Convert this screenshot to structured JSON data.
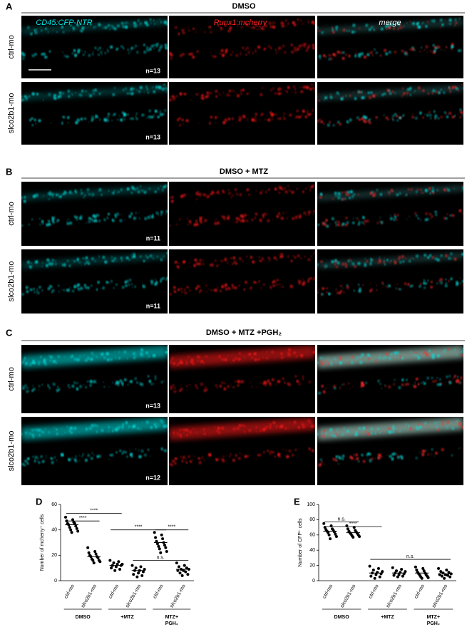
{
  "figure": {
    "columns": [
      "CD45:CFP-NTR",
      "Runx1:mcherry",
      "merge"
    ],
    "panels": [
      {
        "letter": "A",
        "title": "DMSO",
        "rows": [
          {
            "label": "ctrl-mo",
            "n": "n=13"
          },
          {
            "label": "slco2b1-mo",
            "n": "n=13"
          }
        ]
      },
      {
        "letter": "B",
        "title": "DMSO + MTZ",
        "rows": [
          {
            "label": "ctrl-mo",
            "n": "n=11"
          },
          {
            "label": "slco2b1-mo",
            "n": "n=11"
          }
        ]
      },
      {
        "letter": "C",
        "title": "DMSO + MTZ +PGH₂",
        "rows": [
          {
            "label": "ctrl-mo",
            "n": "n=13"
          },
          {
            "label": "slco2b1-mo",
            "n": "n=12"
          }
        ]
      }
    ]
  },
  "chart_data": [
    {
      "type": "dotplot",
      "letter": "D",
      "ylabel": "Number of mcherry⁺ cells",
      "ylim": [
        0,
        60
      ],
      "yticks": [
        0,
        20,
        40,
        60
      ],
      "color": "#000",
      "categories": [
        "ctrl-mo",
        "slco2b1-mo",
        "ctrl-mo",
        "slco2b1-mo",
        "ctrl-mo",
        "slco2b1-mo"
      ],
      "groups": [
        [
          "DMSO"
        ],
        [
          "+MTZ"
        ],
        [
          "MTZ+",
          "PGH₂"
        ]
      ],
      "points": [
        [
          50,
          48,
          47,
          46,
          45,
          45,
          44,
          43,
          42,
          41,
          40,
          39,
          38
        ],
        [
          26,
          23,
          22,
          21,
          20,
          19,
          19,
          18,
          17,
          16,
          16,
          15,
          14
        ],
        [
          16,
          15,
          14,
          13,
          13,
          12,
          12,
          11,
          10,
          9,
          8
        ],
        [
          12,
          11,
          10,
          9,
          8,
          8,
          7,
          6,
          5,
          4,
          3
        ],
        [
          38,
          36,
          34,
          33,
          31,
          30,
          29,
          28,
          27,
          26,
          25,
          23,
          22
        ],
        [
          14,
          12,
          11,
          10,
          9,
          9,
          8,
          8,
          7,
          6,
          5,
          4
        ]
      ],
      "means": [
        44,
        19,
        12,
        8,
        30,
        9
      ],
      "annotations": [
        {
          "text": "****",
          "from": 0,
          "to": 1,
          "y": 47
        },
        {
          "text": "****",
          "from": 0,
          "to": 2,
          "y": 53
        },
        {
          "text": "****",
          "from": 2,
          "to": 4,
          "y": 40
        },
        {
          "text": "****",
          "from": 4,
          "to": 5,
          "y": 40
        },
        {
          "text": "n.s.",
          "from": 3,
          "to": 5,
          "y": 16
        }
      ]
    },
    {
      "type": "dotplot",
      "letter": "E",
      "ylabel": "Number of CFP⁺ cells",
      "ylim": [
        0,
        100
      ],
      "yticks": [
        0,
        20,
        40,
        60,
        80,
        100
      ],
      "color": "#000",
      "categories": [
        "ctrl-mo",
        "slco2b1-mo",
        "ctrl-mo",
        "slco2b1-mo",
        "ctrl-mo",
        "slco2b1-mo"
      ],
      "groups": [
        [
          "DMSO"
        ],
        [
          "+MTZ"
        ],
        [
          "MTZ+",
          "PGH₂"
        ]
      ],
      "points": [
        [
          75,
          72,
          70,
          68,
          67,
          66,
          65,
          64,
          63,
          61,
          60,
          58,
          55
        ],
        [
          72,
          70,
          68,
          66,
          65,
          64,
          63,
          62,
          61,
          60,
          59,
          58,
          57
        ],
        [
          19,
          16,
          14,
          12,
          11,
          10,
          9,
          8,
          6,
          5,
          3
        ],
        [
          17,
          15,
          13,
          12,
          11,
          10,
          9,
          8,
          7,
          6,
          5
        ],
        [
          18,
          16,
          14,
          13,
          11,
          10,
          9,
          8,
          7,
          6,
          5,
          4,
          3
        ],
        [
          16,
          14,
          12,
          11,
          10,
          9,
          8,
          8,
          7,
          6,
          5,
          3
        ]
      ],
      "means": [
        65,
        63,
        10,
        10,
        10,
        9
      ],
      "annotations": [
        {
          "text": "n.s.",
          "from": 0,
          "to": 1,
          "y": 77
        },
        {
          "text": "****",
          "from": 0,
          "to": 2,
          "y": 71
        },
        {
          "text": "n.s.",
          "from": 2,
          "to": 5,
          "y": 28
        }
      ]
    }
  ]
}
